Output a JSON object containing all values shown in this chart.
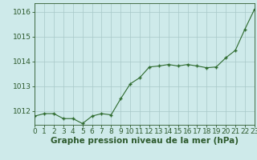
{
  "x": [
    0,
    1,
    2,
    3,
    4,
    5,
    6,
    7,
    8,
    9,
    10,
    11,
    12,
    13,
    14,
    15,
    16,
    17,
    18,
    19,
    20,
    21,
    22,
    23
  ],
  "y": [
    1011.8,
    1011.9,
    1011.9,
    1011.7,
    1011.7,
    1011.5,
    1011.8,
    1011.9,
    1011.85,
    1012.5,
    1013.1,
    1013.35,
    1013.78,
    1013.82,
    1013.88,
    1013.82,
    1013.88,
    1013.82,
    1013.75,
    1013.78,
    1014.15,
    1014.45,
    1015.3,
    1016.1
  ],
  "xlim": [
    0,
    23
  ],
  "ylim": [
    1011.45,
    1016.35
  ],
  "yticks": [
    1012,
    1013,
    1014,
    1015,
    1016
  ],
  "xticks": [
    0,
    1,
    2,
    3,
    4,
    5,
    6,
    7,
    8,
    9,
    10,
    11,
    12,
    13,
    14,
    15,
    16,
    17,
    18,
    19,
    20,
    21,
    22,
    23
  ],
  "xlabel": "Graphe pression niveau de la mer (hPa)",
  "line_color": "#2d6a2d",
  "marker_color": "#2d6a2d",
  "bg_color": "#ceeaea",
  "grid_color": "#a8c8c8",
  "tick_label_color": "#2d5a2d",
  "xlabel_color": "#2d5a2d",
  "xlabel_fontsize": 7.5,
  "tick_fontsize": 6.5
}
